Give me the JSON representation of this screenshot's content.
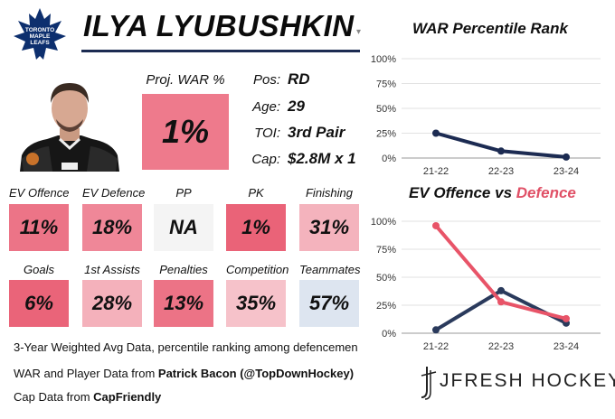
{
  "player": {
    "name": "ILYA LYUBUSHKIN",
    "team_logo_text": [
      "TORONTO",
      "MAPLE",
      "LEAFS"
    ]
  },
  "proj_war": {
    "label": "Proj. WAR %",
    "value": "1%",
    "color": "#ee7a8c"
  },
  "info": [
    {
      "label": "Pos:",
      "value": "RD"
    },
    {
      "label": "Age:",
      "value": "29"
    },
    {
      "label": "TOI:",
      "value": "3rd Pair"
    },
    {
      "label": "Cap:",
      "value": "$2.8M x 1"
    }
  ],
  "stats_row1": [
    {
      "label": "EV Offence",
      "value": "11%",
      "color": "#ec7487"
    },
    {
      "label": "EV Defence",
      "value": "18%",
      "color": "#ef8798"
    },
    {
      "label": "PP",
      "value": "NA",
      "color": "#f4f4f4"
    },
    {
      "label": "PK",
      "value": "1%",
      "color": "#ea6378"
    },
    {
      "label": "Finishing",
      "value": "31%",
      "color": "#f4b3bd"
    }
  ],
  "stats_row2": [
    {
      "label": "Goals",
      "value": "6%",
      "color": "#ea6479"
    },
    {
      "label": "1st Assists",
      "value": "28%",
      "color": "#f4b1bb"
    },
    {
      "label": "Penalties",
      "value": "13%",
      "color": "#ec7386"
    },
    {
      "label": "Competition",
      "value": "35%",
      "color": "#f6c2ca"
    },
    {
      "label": "Teammates",
      "value": "57%",
      "color": "#dde5f0"
    }
  ],
  "footnotes": {
    "line1": "3-Year Weighted Avg Data, percentile ranking among defencemen",
    "line2_prefix": "WAR and Player Data from ",
    "line2_source": "Patrick Bacon (@TopDownHockey)",
    "line3_prefix": "Cap Data from ",
    "line3_source": "CapFriendly"
  },
  "brand": "JFRESH HOCKEY",
  "chart_data": [
    {
      "type": "line",
      "title": "WAR Percentile Rank",
      "categories": [
        "21-22",
        "22-23",
        "23-24"
      ],
      "yticks": [
        "100%",
        "75%",
        "50%",
        "25%",
        "0%"
      ],
      "ylim": [
        0,
        100
      ],
      "series": [
        {
          "values": [
            25,
            7,
            1
          ],
          "color": "#1c2b52"
        }
      ]
    },
    {
      "type": "line",
      "title_part1": "EV Offence vs ",
      "title_part2": "Defence",
      "categories": [
        "21-22",
        "22-23",
        "23-24"
      ],
      "yticks": [
        "100%",
        "75%",
        "50%",
        "25%",
        "0%"
      ],
      "ylim": [
        0,
        100
      ],
      "series": [
        {
          "name": "EV Offence",
          "values": [
            3,
            38,
            9
          ],
          "color": "#2a3a5c"
        },
        {
          "name": "EV Defence",
          "values": [
            96,
            28,
            13
          ],
          "color": "#e85468"
        }
      ]
    }
  ]
}
